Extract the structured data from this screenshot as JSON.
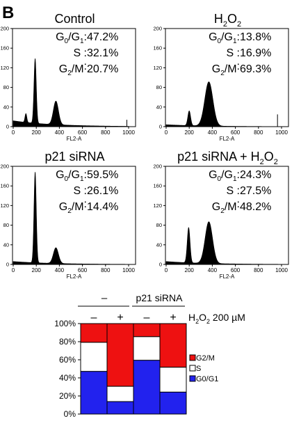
{
  "figure": {
    "panel_letter": "B"
  },
  "histograms": [
    {
      "title_parts": [
        [
          "Control",
          ""
        ]
      ],
      "stats": [
        {
          "label": [
            [
              "G",
              ""
            ],
            [
              "0",
              "sub"
            ],
            [
              "/G",
              ""
            ],
            [
              "1",
              "sub"
            ]
          ],
          "sep": ": ",
          "value": "47.2%"
        },
        {
          "label": [
            [
              "S",
              ""
            ]
          ],
          "sep": "  : ",
          "value": "32.1%"
        },
        {
          "label": [
            [
              "G",
              ""
            ],
            [
              "2",
              "sub"
            ],
            [
              "/M",
              ""
            ]
          ],
          "sep": ": ",
          "value": "20.7%"
        }
      ],
      "peaks": [
        {
          "x": 110,
          "h": 18,
          "w": 8
        },
        {
          "x": 190,
          "h": 132,
          "w": 10
        },
        {
          "x": 370,
          "h": 48,
          "w": 22
        }
      ],
      "baseline": 12,
      "tail_x": 985,
      "tail_h": 14
    },
    {
      "title_parts": [
        [
          "H",
          ""
        ],
        [
          "2",
          "sub"
        ],
        [
          "O",
          ""
        ],
        [
          "2",
          "sub"
        ]
      ],
      "stats": [
        {
          "label": [
            [
              "G",
              ""
            ],
            [
              "0",
              "sub"
            ],
            [
              "/G",
              ""
            ],
            [
              "1",
              "sub"
            ]
          ],
          "sep": ": ",
          "value": "13.8%"
        },
        {
          "label": [
            [
              "S",
              ""
            ]
          ],
          "sep": "  : ",
          "value": "16.9%"
        },
        {
          "label": [
            [
              "G",
              ""
            ],
            [
              "2",
              "sub"
            ],
            [
              "/M",
              ""
            ]
          ],
          "sep": ": ",
          "value": "69.3%"
        }
      ],
      "peaks": [
        {
          "x": 200,
          "h": 30,
          "w": 12
        },
        {
          "x": 370,
          "h": 90,
          "w": 35
        }
      ],
      "baseline": 4,
      "tail_x": 965,
      "tail_h": 25
    },
    {
      "title_parts": [
        [
          "p21 siRNA",
          ""
        ]
      ],
      "stats": [
        {
          "label": [
            [
              "G",
              ""
            ],
            [
              "0",
              "sub"
            ],
            [
              "/G",
              ""
            ],
            [
              "1",
              "sub"
            ]
          ],
          "sep": ":",
          "value": "59.5%"
        },
        {
          "label": [
            [
              "S",
              ""
            ]
          ],
          "sep": "  :",
          "value": "26.1%"
        },
        {
          "label": [
            [
              "G",
              ""
            ],
            [
              "2",
              "sub"
            ],
            [
              "/M",
              ""
            ]
          ],
          "sep": ":",
          "value": "14.4%"
        }
      ],
      "peaks": [
        {
          "x": 190,
          "h": 185,
          "w": 10
        },
        {
          "x": 370,
          "h": 32,
          "w": 22
        }
      ],
      "baseline": 6,
      "tail_x": 0,
      "tail_h": 0
    },
    {
      "title_parts": [
        [
          "p21 siRNA + H",
          ""
        ],
        [
          "2",
          "sub"
        ],
        [
          "O",
          ""
        ],
        [
          "2",
          "sub"
        ]
      ],
      "stats": [
        {
          "label": [
            [
              "G",
              ""
            ],
            [
              "0",
              "sub"
            ],
            [
              "/G",
              ""
            ],
            [
              "1",
              "sub"
            ]
          ],
          "sep": ": ",
          "value": "24.3%"
        },
        {
          "label": [
            [
              "S",
              ""
            ]
          ],
          "sep": "  : ",
          "value": "27.5%"
        },
        {
          "label": [
            [
              "G",
              ""
            ],
            [
              "2",
              "sub"
            ],
            [
              "/M",
              ""
            ]
          ],
          "sep": ": ",
          "value": "48.2%"
        }
      ],
      "peaks": [
        {
          "x": 195,
          "h": 72,
          "w": 12
        },
        {
          "x": 370,
          "h": 85,
          "w": 32
        }
      ],
      "baseline": 6,
      "tail_x": 0,
      "tail_h": 0
    }
  ],
  "hist_axes": {
    "xlabel": "FL2-A",
    "x_ticks": [
      "0",
      "200",
      "400",
      "600",
      "800",
      "1000"
    ],
    "y_ticks": [
      "0",
      "40",
      "80",
      "120",
      "160",
      "200"
    ],
    "xlim": [
      0,
      1000
    ],
    "ylim": [
      0,
      200
    ]
  },
  "bar_chart": {
    "group_labels": [
      {
        "text": "–"
      },
      {
        "text": "p21 siRNA"
      }
    ],
    "h2o2_signs": [
      "–",
      "+",
      "–",
      "+"
    ],
    "h2o2_label_parts": [
      [
        "H",
        ""
      ],
      [
        "2",
        "sub"
      ],
      [
        "O",
        ""
      ],
      [
        "2",
        "sub"
      ],
      [
        "  200 µM",
        ""
      ]
    ],
    "legend": [
      {
        "label": "G2/M",
        "color": "#ee1111"
      },
      {
        "label": "S",
        "color": "#ffffff"
      },
      {
        "label": "G0/G1",
        "color": "#2222ee"
      }
    ]
  },
  "chart_data": {
    "type": "bar",
    "stacked": true,
    "categories": [
      "–",
      "+",
      "–",
      "+"
    ],
    "series": [
      {
        "name": "G0/G1",
        "values": [
          47.2,
          13.8,
          59.5,
          24.3
        ],
        "color": "#2222ee"
      },
      {
        "name": "S",
        "values": [
          32.1,
          16.9,
          26.1,
          27.5
        ],
        "color": "#ffffff"
      },
      {
        "name": "G2/M",
        "values": [
          20.7,
          69.3,
          14.4,
          48.2
        ],
        "color": "#ee1111"
      }
    ],
    "ylim": [
      0,
      100
    ],
    "y_ticks": [
      "0%",
      "20%",
      "40%",
      "60%",
      "80%",
      "100%"
    ]
  }
}
